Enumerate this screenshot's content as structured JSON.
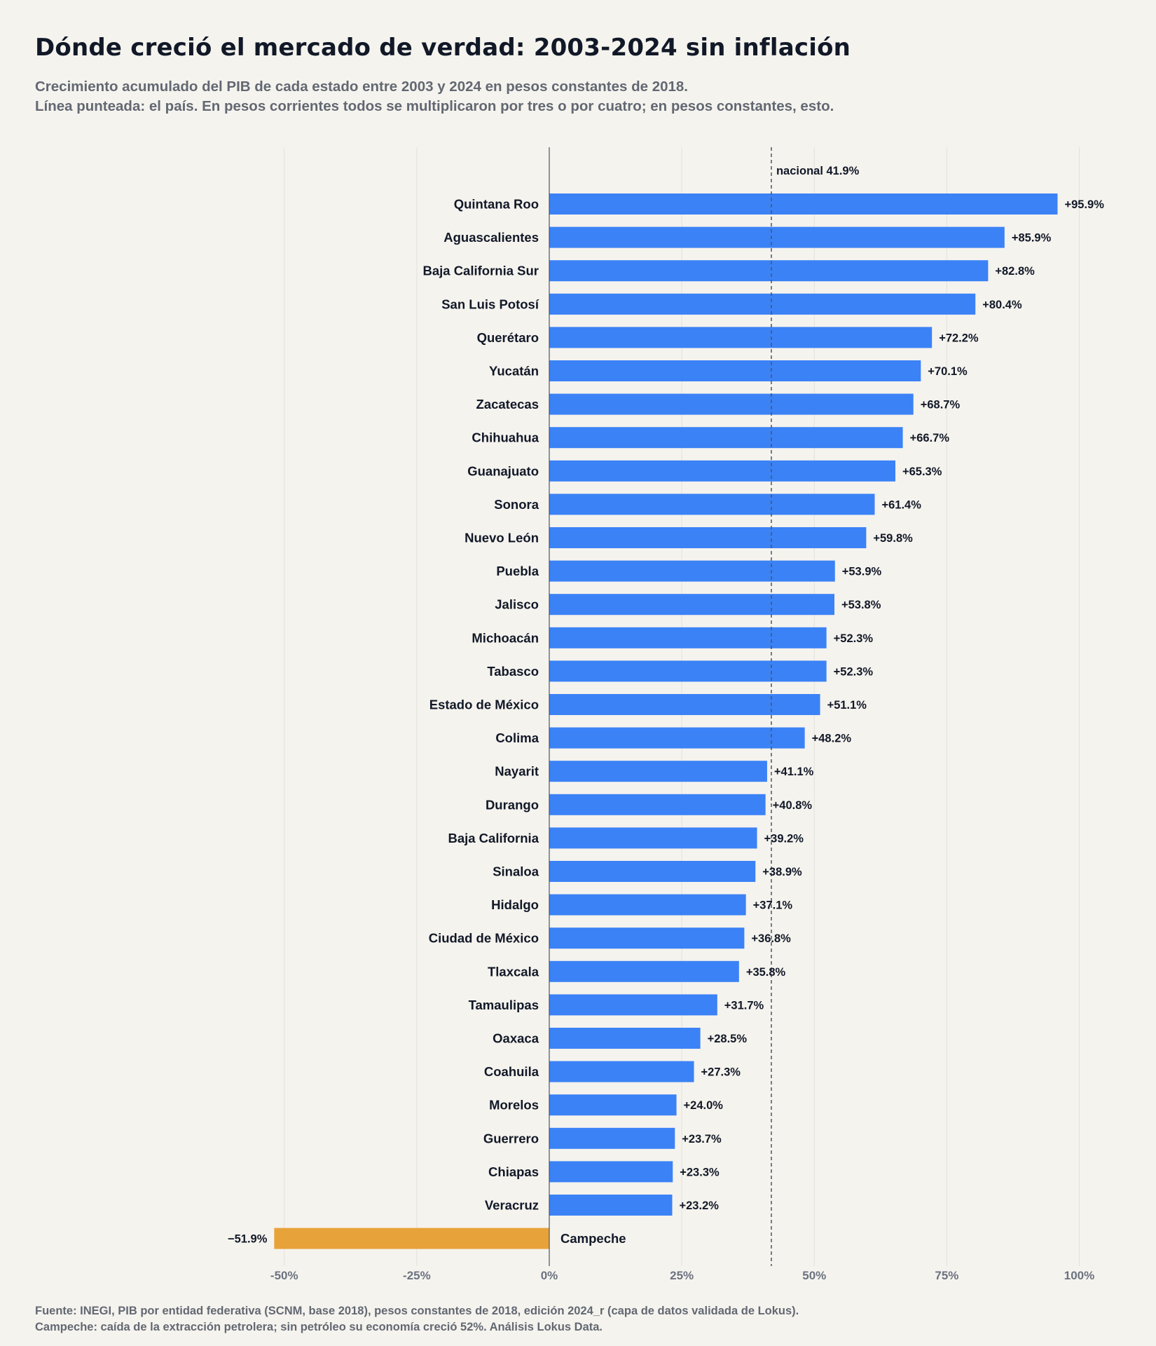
{
  "title": "Dónde creció el mercado de verdad: 2003-2024 sin inflación",
  "subtitle_line1": "Crecimiento acumulado del PIB de cada estado entre 2003 y 2024 en pesos constantes de 2018.",
  "subtitle_line2": "Línea punteada: el país. En pesos corrientes todos se multiplicaron por tres o por cuatro; en pesos constantes, esto.",
  "footer_line1": "Fuente: INEGI, PIB por entidad federativa (SCNM, base 2018), pesos constantes de 2018, edición 2024_r (capa de datos validada de Lokus).",
  "footer_line2": "Campeche: caída de la extracción petrolera; sin petróleo su economía creció 52%. Análisis Lokus Data.",
  "colors": {
    "positive": "#3b82f6",
    "negative": "#e8a23a",
    "background": "#f5f3ee",
    "grid": "#e3e1dc",
    "zero_line": "#4b5563",
    "reference_line": "#4b5563"
  },
  "chart_data": {
    "type": "bar",
    "orientation": "horizontal",
    "categories": [
      "Quintana Roo",
      "Aguascalientes",
      "Baja California Sur",
      "San Luis Potosí",
      "Querétaro",
      "Yucatán",
      "Zacatecas",
      "Chihuahua",
      "Guanajuato",
      "Sonora",
      "Nuevo León",
      "Puebla",
      "Jalisco",
      "Michoacán",
      "Tabasco",
      "Estado de México",
      "Colima",
      "Nayarit",
      "Durango",
      "Baja California",
      "Sinaloa",
      "Hidalgo",
      "Ciudad de México",
      "Tlaxcala",
      "Tamaulipas",
      "Oaxaca",
      "Coahuila",
      "Morelos",
      "Guerrero",
      "Chiapas",
      "Veracruz",
      "Campeche"
    ],
    "values": [
      95.9,
      85.9,
      82.8,
      80.4,
      72.2,
      70.1,
      68.7,
      66.7,
      65.3,
      61.4,
      59.8,
      53.9,
      53.8,
      52.3,
      52.3,
      51.1,
      48.2,
      41.1,
      40.8,
      39.2,
      38.9,
      37.1,
      36.8,
      35.8,
      31.7,
      28.5,
      27.3,
      24.0,
      23.7,
      23.3,
      23.2,
      -51.9
    ],
    "value_labels": [
      "+95.9%",
      "+85.9%",
      "+82.8%",
      "+80.4%",
      "+72.2%",
      "+70.1%",
      "+68.7%",
      "+66.7%",
      "+65.3%",
      "+61.4%",
      "+59.8%",
      "+53.9%",
      "+53.8%",
      "+52.3%",
      "+52.3%",
      "+51.1%",
      "+48.2%",
      "+41.1%",
      "+40.8%",
      "+39.2%",
      "+38.9%",
      "+37.1%",
      "+36.8%",
      "+35.8%",
      "+31.7%",
      "+28.5%",
      "+27.3%",
      "+24.0%",
      "+23.7%",
      "+23.3%",
      "+23.2%",
      "−51.9%"
    ],
    "xlim": [
      -55,
      103
    ],
    "xticks": [
      -50,
      -25,
      0,
      25,
      50,
      75,
      100
    ],
    "xtick_labels": [
      "-50%",
      "-25%",
      "0%",
      "25%",
      "50%",
      "75%",
      "100%"
    ],
    "grid": true,
    "reference_line": {
      "value": 41.9,
      "label": "nacional 41.9%"
    }
  }
}
